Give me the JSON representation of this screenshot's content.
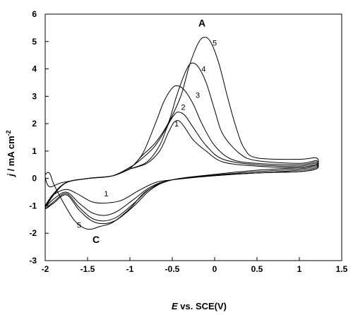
{
  "chart_data": {
    "type": "line",
    "title": "",
    "xlabel_symbol": "E",
    "xlabel_rest": " vs. SCE(V)",
    "ylabel_symbol": "j",
    "ylabel_rest": " / mA cm",
    "ylabel_exp": "-2",
    "xlim": [
      -2,
      1.5
    ],
    "ylim": [
      -3,
      6
    ],
    "xticks": [
      -2,
      -1.5,
      -1,
      -0.5,
      0,
      0.5,
      1,
      1.5
    ],
    "xtick_labels": [
      "-2",
      "-1.5",
      "-1",
      "-0.5",
      "0",
      "0.5",
      "1",
      "1.5"
    ],
    "yticks": [
      -3,
      -2,
      -1,
      0,
      1,
      2,
      3,
      4,
      5,
      6
    ],
    "ytick_labels": [
      "-3",
      "-2",
      "-1",
      "0",
      "1",
      "2",
      "3",
      "4",
      "5",
      "6"
    ],
    "grid": false,
    "legend": "none",
    "annotations": [
      {
        "text": "A",
        "x": -0.15,
        "y": 5.55
      },
      {
        "text": "C",
        "x": -1.4,
        "y": -2.35
      }
    ],
    "series": [
      {
        "label": "1",
        "label_at": [
          -1.28,
          -0.65
        ],
        "label_at2": [
          -0.45,
          1.9
        ],
        "points": [
          [
            -1.0,
            0.35
          ],
          [
            -0.8,
            0.55
          ],
          [
            -0.65,
            1.0
          ],
          [
            -0.55,
            1.65
          ],
          [
            -0.48,
            2.05
          ],
          [
            -0.42,
            2.1
          ],
          [
            -0.35,
            1.85
          ],
          [
            -0.25,
            1.4
          ],
          [
            -0.1,
            1.0
          ],
          [
            0.1,
            0.6
          ],
          [
            0.5,
            0.45
          ],
          [
            1.0,
            0.4
          ],
          [
            1.2,
            0.5
          ],
          [
            1.2,
            0.35
          ],
          [
            1.0,
            0.25
          ],
          [
            0.5,
            0.2
          ],
          [
            0,
            0.1
          ],
          [
            -0.5,
            -0.05
          ],
          [
            -0.7,
            -0.15
          ],
          [
            -0.9,
            -0.45
          ],
          [
            -1.1,
            -0.8
          ],
          [
            -1.3,
            -0.9
          ],
          [
            -1.45,
            -0.85
          ],
          [
            -1.6,
            -0.6
          ],
          [
            -1.75,
            -0.4
          ],
          [
            -1.9,
            -0.6
          ],
          [
            -2.0,
            -1.0
          ],
          [
            -1.9,
            -0.55
          ],
          [
            -1.75,
            -0.15
          ],
          [
            -1.5,
            0.0
          ],
          [
            -1.2,
            0.1
          ],
          [
            -1.0,
            0.35
          ]
        ]
      },
      {
        "label": "2",
        "label_at": [
          -0.37,
          2.5
        ],
        "points": [
          [
            -1.0,
            0.35
          ],
          [
            -0.8,
            0.6
          ],
          [
            -0.65,
            1.2
          ],
          [
            -0.55,
            1.95
          ],
          [
            -0.47,
            2.35
          ],
          [
            -0.42,
            2.42
          ],
          [
            -0.35,
            2.3
          ],
          [
            -0.25,
            1.85
          ],
          [
            -0.1,
            1.2
          ],
          [
            0.1,
            0.7
          ],
          [
            0.5,
            0.5
          ],
          [
            1.0,
            0.45
          ],
          [
            1.2,
            0.55
          ],
          [
            1.2,
            0.35
          ],
          [
            1.0,
            0.25
          ],
          [
            0.5,
            0.2
          ],
          [
            0,
            0.1
          ],
          [
            -0.5,
            -0.05
          ],
          [
            -0.75,
            -0.3
          ],
          [
            -0.95,
            -0.75
          ],
          [
            -1.15,
            -1.2
          ],
          [
            -1.3,
            -1.35
          ],
          [
            -1.45,
            -1.25
          ],
          [
            -1.6,
            -0.9
          ],
          [
            -1.75,
            -0.5
          ],
          [
            -1.9,
            -0.75
          ],
          [
            -2.0,
            -1.05
          ],
          [
            -1.9,
            -0.6
          ],
          [
            -1.75,
            -0.15
          ],
          [
            -1.5,
            0.0
          ],
          [
            -1.2,
            0.1
          ],
          [
            -1.0,
            0.35
          ]
        ]
      },
      {
        "label": "3",
        "label_at": [
          -0.2,
          2.95
        ],
        "points": [
          [
            -1.0,
            0.35
          ],
          [
            -0.85,
            0.9
          ],
          [
            -0.7,
            2.0
          ],
          [
            -0.6,
            2.8
          ],
          [
            -0.5,
            3.3
          ],
          [
            -0.43,
            3.38
          ],
          [
            -0.35,
            3.2
          ],
          [
            -0.25,
            2.7
          ],
          [
            -0.15,
            2.0
          ],
          [
            0,
            1.2
          ],
          [
            0.2,
            0.7
          ],
          [
            0.5,
            0.55
          ],
          [
            1.0,
            0.5
          ],
          [
            1.2,
            0.6
          ],
          [
            1.2,
            0.4
          ],
          [
            1.0,
            0.3
          ],
          [
            0.5,
            0.2
          ],
          [
            0,
            0.12
          ],
          [
            -0.5,
            -0.05
          ],
          [
            -0.75,
            -0.35
          ],
          [
            -0.95,
            -0.9
          ],
          [
            -1.15,
            -1.4
          ],
          [
            -1.3,
            -1.55
          ],
          [
            -1.45,
            -1.45
          ],
          [
            -1.6,
            -1.05
          ],
          [
            -1.75,
            -0.55
          ],
          [
            -1.9,
            -0.85
          ],
          [
            -2.0,
            -1.1
          ],
          [
            -1.9,
            -0.6
          ],
          [
            -1.75,
            -0.15
          ],
          [
            -1.5,
            0.0
          ],
          [
            -1.2,
            0.1
          ],
          [
            -1.0,
            0.35
          ]
        ]
      },
      {
        "label": "4",
        "label_at": [
          -0.13,
          3.9
        ],
        "points": [
          [
            -0.97,
            0.45
          ],
          [
            -0.85,
            0.75
          ],
          [
            -0.7,
            1.2
          ],
          [
            -0.55,
            2.0
          ],
          [
            -0.45,
            3.0
          ],
          [
            -0.35,
            3.85
          ],
          [
            -0.28,
            4.2
          ],
          [
            -0.2,
            4.1
          ],
          [
            -0.1,
            3.5
          ],
          [
            0,
            2.5
          ],
          [
            0.1,
            1.6
          ],
          [
            0.3,
            0.9
          ],
          [
            0.5,
            0.65
          ],
          [
            1.0,
            0.55
          ],
          [
            1.2,
            0.65
          ],
          [
            1.2,
            0.45
          ],
          [
            1.0,
            0.35
          ],
          [
            0.5,
            0.25
          ],
          [
            0,
            0.12
          ],
          [
            -0.5,
            -0.05
          ],
          [
            -0.75,
            -0.4
          ],
          [
            -0.95,
            -1.0
          ],
          [
            -1.15,
            -1.5
          ],
          [
            -1.3,
            -1.65
          ],
          [
            -1.45,
            -1.55
          ],
          [
            -1.6,
            -1.15
          ],
          [
            -1.75,
            -0.6
          ],
          [
            -1.9,
            -0.9
          ],
          [
            -2.0,
            -1.1
          ],
          [
            -1.9,
            -0.6
          ],
          [
            -1.75,
            -0.15
          ],
          [
            -1.5,
            0.0
          ],
          [
            -1.2,
            0.1
          ],
          [
            -0.97,
            0.45
          ]
        ]
      },
      {
        "label": "5",
        "label_at": [
          0.0,
          4.85
        ],
        "label_at2": [
          -1.6,
          -1.8
        ],
        "points": [
          [
            -0.95,
            0.5
          ],
          [
            -0.85,
            0.85
          ],
          [
            -0.7,
            1.3
          ],
          [
            -0.55,
            2.0
          ],
          [
            -0.4,
            3.0
          ],
          [
            -0.3,
            4.1
          ],
          [
            -0.2,
            4.9
          ],
          [
            -0.13,
            5.15
          ],
          [
            -0.05,
            5.0
          ],
          [
            0.05,
            4.2
          ],
          [
            0.15,
            3.0
          ],
          [
            0.25,
            1.9
          ],
          [
            0.35,
            1.1
          ],
          [
            0.5,
            0.75
          ],
          [
            1.0,
            0.7
          ],
          [
            1.2,
            0.75
          ],
          [
            1.2,
            0.5
          ],
          [
            1.0,
            0.4
          ],
          [
            0.5,
            0.3
          ],
          [
            0,
            0.15
          ],
          [
            -0.5,
            -0.05
          ],
          [
            -0.8,
            -0.45
          ],
          [
            -1.0,
            -1.1
          ],
          [
            -1.2,
            -1.6
          ],
          [
            -1.35,
            -1.75
          ],
          [
            -1.5,
            -1.85
          ],
          [
            -1.65,
            -1.55
          ],
          [
            -1.8,
            -0.8
          ],
          [
            -1.9,
            -0.2
          ],
          [
            -1.95,
            0.2
          ],
          [
            -2.0,
            0.1
          ],
          [
            -1.95,
            -0.3
          ],
          [
            -1.8,
            -0.15
          ],
          [
            -1.5,
            0.0
          ],
          [
            -1.2,
            0.1
          ],
          [
            -0.95,
            0.5
          ]
        ]
      }
    ]
  }
}
